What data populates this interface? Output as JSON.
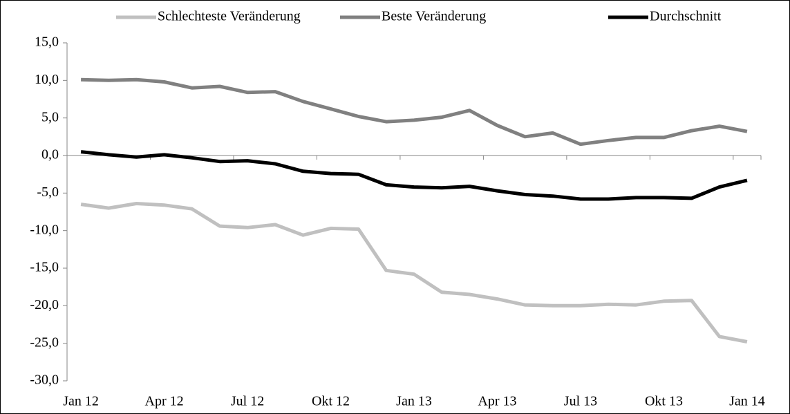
{
  "chart_data": {
    "type": "line",
    "categories": [
      "Jan 12",
      null,
      null,
      "Apr 12",
      null,
      null,
      "Jul 12",
      null,
      null,
      "Okt 12",
      null,
      null,
      "Jan 13",
      null,
      null,
      "Apr 13",
      null,
      null,
      "Jul 13",
      null,
      null,
      "Okt 13",
      null,
      null,
      "Jan 14"
    ],
    "series": [
      {
        "name": "Schlechteste Veränderung",
        "color": "#c0c0c0",
        "values": [
          -6.5,
          -7.0,
          -6.4,
          -6.6,
          -7.1,
          -9.4,
          -9.6,
          -9.2,
          -10.6,
          -9.7,
          -9.8,
          -15.3,
          -15.8,
          -18.2,
          -18.5,
          -19.1,
          -19.9,
          -20.0,
          -20.0,
          -19.8,
          -19.9,
          -19.4,
          -19.3,
          -24.1,
          -24.8
        ]
      },
      {
        "name": "Beste Veränderung",
        "color": "#808080",
        "values": [
          10.1,
          10.0,
          10.1,
          9.8,
          9.0,
          9.2,
          8.4,
          8.5,
          7.2,
          6.2,
          5.2,
          4.5,
          4.7,
          5.1,
          6.0,
          4.0,
          2.5,
          3.0,
          1.5,
          2.0,
          2.4,
          2.4,
          3.3,
          3.9,
          3.2
        ]
      },
      {
        "name": "Durchschnitt",
        "color": "#000000",
        "values": [
          0.5,
          0.1,
          -0.2,
          0.1,
          -0.3,
          -0.8,
          -0.7,
          -1.1,
          -2.1,
          -2.4,
          -2.5,
          -3.9,
          -4.2,
          -4.3,
          -4.1,
          -4.7,
          -5.2,
          -5.4,
          -5.8,
          -5.8,
          -5.6,
          -5.6,
          -5.7,
          -4.2,
          -3.3
        ]
      }
    ],
    "ylim": [
      -30,
      15
    ],
    "yticks": [
      {
        "value": -30,
        "label": "-30,0"
      },
      {
        "value": -25,
        "label": "-25,0"
      },
      {
        "value": -20,
        "label": "-20,0"
      },
      {
        "value": -15,
        "label": "-15,0"
      },
      {
        "value": -10,
        "label": "-10,0"
      },
      {
        "value": -5,
        "label": "-5,0"
      },
      {
        "value": 0,
        "label": "0,0"
      },
      {
        "value": 5,
        "label": "5,0"
      },
      {
        "value": 10,
        "label": "10,0"
      },
      {
        "value": 15,
        "label": "15,0"
      }
    ],
    "grid": false,
    "legend": "top"
  }
}
